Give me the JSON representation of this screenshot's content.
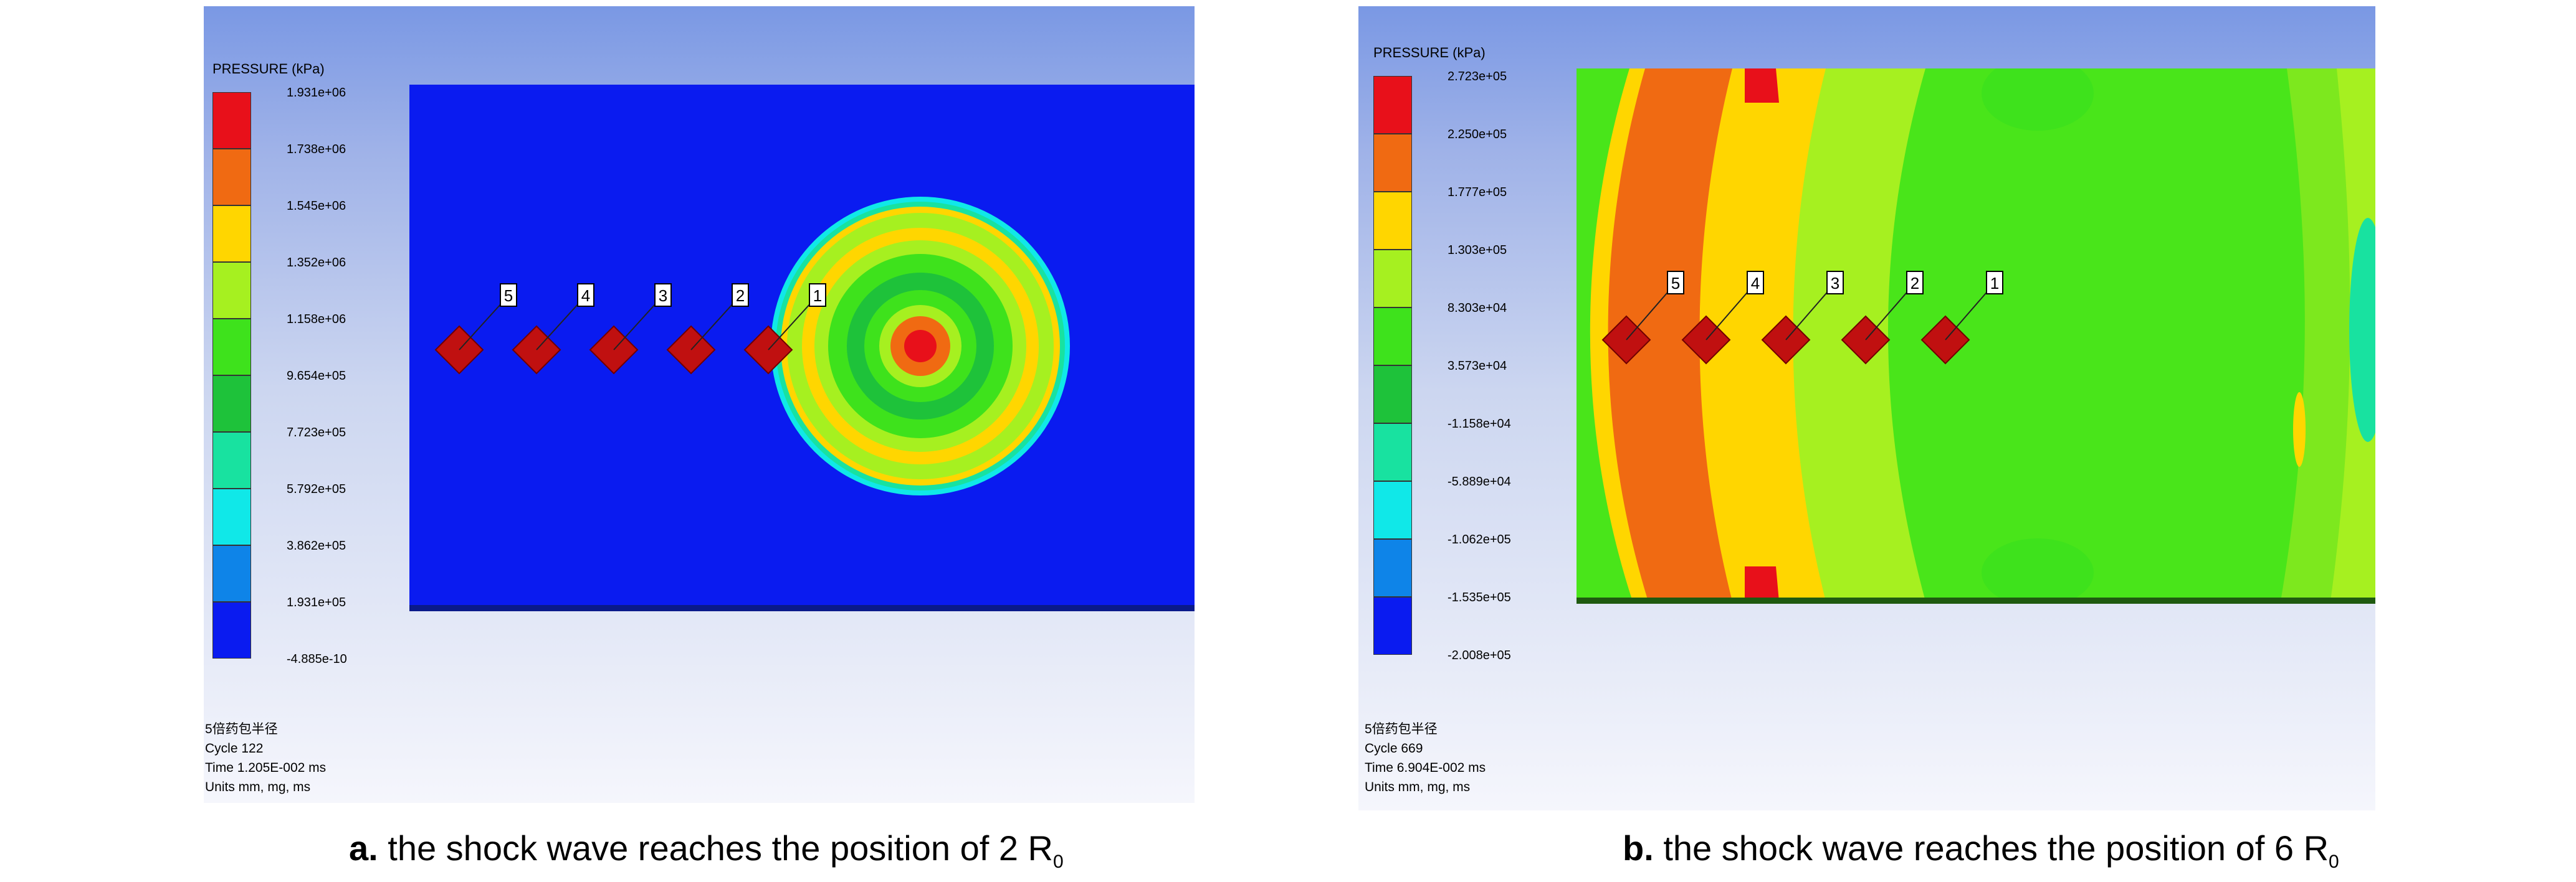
{
  "panels": [
    {
      "id": "a",
      "legend_title": "PRESSURE (kPa)",
      "legend_labels": [
        "1.931e+06",
        "1.738e+06",
        "1.545e+06",
        "1.352e+06",
        "1.158e+06",
        "9.654e+05",
        "7.723e+05",
        "5.792e+05",
        "3.862e+05",
        "1.931e+05",
        "-4.885e-10"
      ],
      "legend_colors": [
        "#e8101a",
        "#f06a12",
        "#ffd600",
        "#a6f020",
        "#3ee21c",
        "#1ec23a",
        "#18e2a0",
        "#10e8e8",
        "#0e84e8",
        "#0a1bf0"
      ],
      "info": {
        "name": "5倍药包半径",
        "cycle": "Cycle 122",
        "time": "Time 1.205E-002 ms",
        "units": "Units mm, mg, ms"
      },
      "gauges": [
        "5",
        "4",
        "3",
        "2",
        "1"
      ],
      "caption": {
        "letter": "a.",
        "text": " the shock wave reaches the position of 2 R",
        "subscript": "0"
      }
    },
    {
      "id": "b",
      "legend_title": "PRESSURE (kPa)",
      "legend_labels": [
        "2.723e+05",
        "2.250e+05",
        "1.777e+05",
        "1.303e+05",
        "8.303e+04",
        "3.573e+04",
        "-1.158e+04",
        "-5.889e+04",
        "-1.062e+05",
        "-1.535e+05",
        "-2.008e+05"
      ],
      "legend_colors": [
        "#e8101a",
        "#f06a12",
        "#ffd600",
        "#a6f020",
        "#3ee21c",
        "#1ec23a",
        "#18e2a0",
        "#10e8e8",
        "#0e84e8",
        "#0a1bf0"
      ],
      "info": {
        "name": "5倍药包半径",
        "cycle": "Cycle 669",
        "time": "Time 6.904E-002 ms",
        "units": "Units mm, mg, ms"
      },
      "gauges": [
        "5",
        "4",
        "3",
        "2",
        "1"
      ],
      "caption": {
        "letter": "b.",
        "text": " the shock wave reaches the position of 6 R",
        "subscript": "0"
      }
    }
  ]
}
